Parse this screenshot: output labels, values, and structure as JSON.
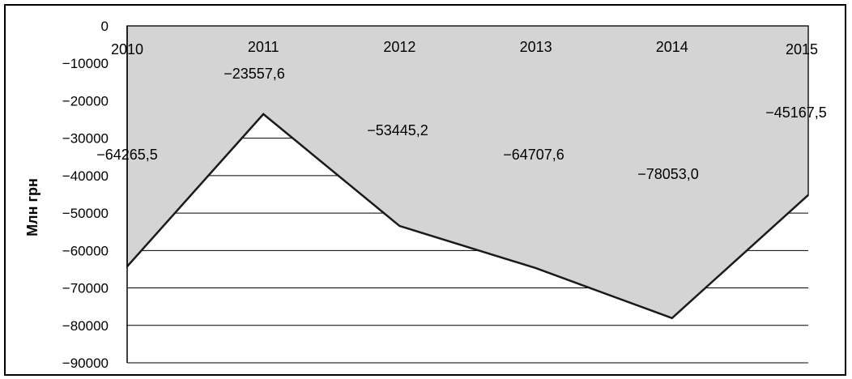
{
  "chart_data": {
    "type": "area",
    "title": "",
    "xlabel": "",
    "ylabel": "Млн грн",
    "categories": [
      "2010",
      "2011",
      "2012",
      "2013",
      "2014",
      "2015"
    ],
    "values": [
      -64265.5,
      -23557.6,
      -53445.2,
      -64707.6,
      -78053.0,
      -45167.5
    ],
    "data_labels": [
      "−64265,5",
      "−23557,6",
      "−53445,2",
      "−64707,6",
      "−78053,0",
      "−45167,5"
    ],
    "ylim": [
      -90000,
      0
    ],
    "yticks": [
      0,
      -10000,
      -20000,
      -30000,
      -40000,
      -50000,
      -60000,
      -70000,
      -80000,
      -90000
    ],
    "ytick_labels": [
      "0",
      "−10000",
      "−20000",
      "−30000",
      "−40000",
      "−50000",
      "−60000",
      "−70000",
      "−80000",
      "−90000"
    ],
    "grid": true,
    "fill_color": "#d4d4d4",
    "line_color": "#1a1a1a"
  }
}
